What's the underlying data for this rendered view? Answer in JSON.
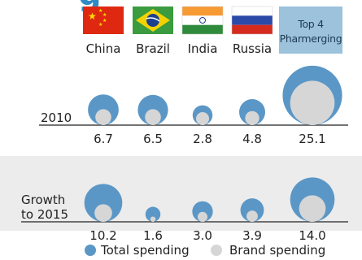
{
  "chart_data": {
    "type": "bubble",
    "title_fragment": "g",
    "countries": [
      "China",
      "Brazil",
      "India",
      "Russia"
    ],
    "group": {
      "label_line1": "Top 4",
      "label_line2": "Pharmerging"
    },
    "rows": [
      {
        "label_lines": [
          "2010"
        ],
        "values": [
          6.7,
          6.5,
          2.8,
          4.8,
          25.1
        ],
        "value_labels": [
          "6.7",
          "6.5",
          "2.8",
          "4.8",
          "25.1"
        ],
        "brand_values": [
          1.8,
          1.8,
          1.2,
          1.4,
          14.0
        ]
      },
      {
        "label_lines": [
          "Growth",
          "to 2015"
        ],
        "values": [
          10.2,
          1.6,
          3.0,
          3.9,
          14.0
        ],
        "value_labels": [
          "10.2",
          "1.6",
          "3.0",
          "3.9",
          "14.0"
        ],
        "brand_values": [
          2.2,
          0.2,
          0.7,
          0.9,
          5.0
        ]
      }
    ],
    "legend": [
      {
        "label": "Total spending",
        "color": "#5b97c6"
      },
      {
        "label": "Brand spending",
        "color": "#d6d6d6"
      }
    ],
    "colors": {
      "total": "#5b97c6",
      "brand": "#d6d6d6",
      "title": "#2f8bc4",
      "band": "#ececec",
      "header_box": "#9cc2dc"
    }
  }
}
